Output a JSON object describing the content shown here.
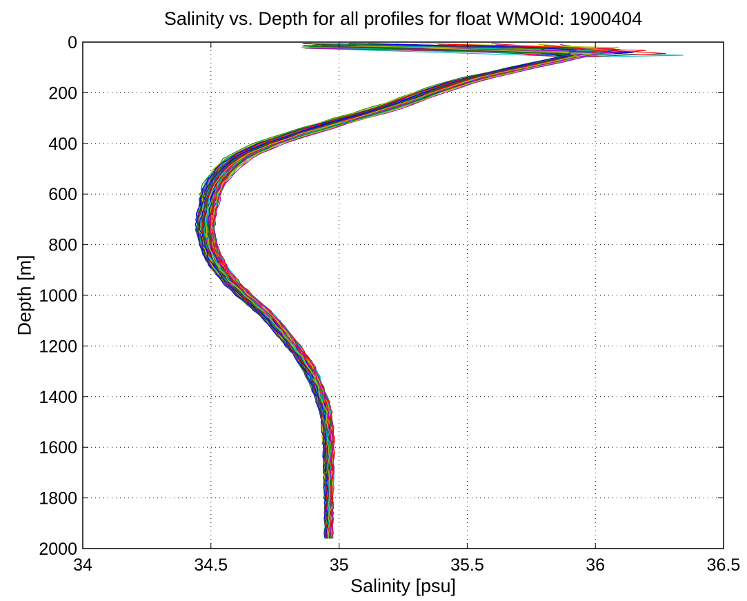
{
  "chart_data": {
    "type": "line",
    "title": "Salinity vs. Depth for all profiles for float WMOId: 1900404",
    "xlabel": "Salinity [psu]",
    "ylabel": "Depth [m]",
    "xlim": [
      34,
      36.5
    ],
    "ylim": [
      0,
      2000
    ],
    "y_reversed": true,
    "grid": true,
    "legend": "none",
    "x_ticks": [
      "34",
      "34.5",
      "35",
      "35.5",
      "36",
      "36.5"
    ],
    "y_ticks": [
      "0",
      "200",
      "400",
      "600",
      "800",
      "1000",
      "1200",
      "1400",
      "1600",
      "1800",
      "2000"
    ],
    "line_colors": [
      "#0000ff",
      "#007f00",
      "#ff0000",
      "#00bfbf",
      "#bf00bf",
      "#bfbf00",
      "#404040"
    ],
    "mean_profile": {
      "depth": [
        20,
        50,
        100,
        150,
        200,
        250,
        300,
        350,
        400,
        450,
        500,
        550,
        600,
        650,
        700,
        750,
        800,
        850,
        900,
        950,
        1000,
        1050,
        1100,
        1150,
        1200,
        1250,
        1300,
        1350,
        1400,
        1450,
        1500,
        1600,
        1700,
        1800,
        1900,
        1960
      ],
      "salinity": [
        35.95,
        35.95,
        35.72,
        35.5,
        35.35,
        35.22,
        35.05,
        34.88,
        34.73,
        34.62,
        34.56,
        34.52,
        34.5,
        34.49,
        34.48,
        34.48,
        34.49,
        34.51,
        34.54,
        34.58,
        34.63,
        34.69,
        34.74,
        34.78,
        34.82,
        34.86,
        34.89,
        34.91,
        34.93,
        34.945,
        34.955,
        34.96,
        34.96,
        34.96,
        34.96,
        34.96
      ]
    },
    "profile_count": 140,
    "spread_salinity": 0.05
  }
}
